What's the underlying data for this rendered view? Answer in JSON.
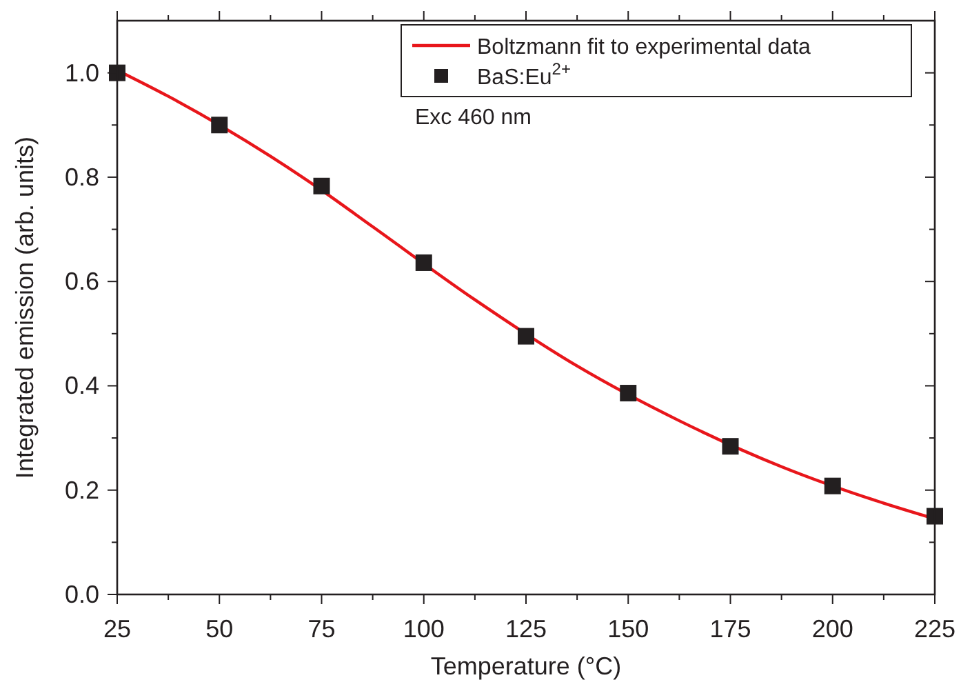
{
  "chart_data": {
    "type": "line",
    "xlabel": "Temperature (°C)",
    "ylabel": "Integrated emission (arb. units)",
    "xlim": [
      25,
      225
    ],
    "ylim": [
      0,
      1.1
    ],
    "xticks": [
      25,
      {
        "value": 37.5,
        "label": null
      },
      50,
      {
        "value": 62.5,
        "label": null
      },
      75,
      {
        "value": 87.5,
        "label": null
      },
      100,
      {
        "value": 112.5,
        "label": null
      },
      125,
      {
        "value": 137.5,
        "label": null
      },
      150,
      {
        "value": 162.5,
        "label": null
      },
      175,
      {
        "value": 187.5,
        "label": null
      },
      200,
      {
        "value": 212.5,
        "label": null
      },
      225
    ],
    "yticks": [
      {
        "value": 0,
        "label": "0.0"
      },
      {
        "value": 0.1,
        "label": null
      },
      0.2,
      {
        "value": 0.3,
        "label": null
      },
      0.4,
      {
        "value": 0.5,
        "label": null
      },
      0.6,
      {
        "value": 0.7,
        "label": null
      },
      0.8,
      {
        "value": 0.9,
        "label": null
      },
      {
        "value": 1,
        "label": "1.0"
      }
    ],
    "legend": "top right",
    "grid": false,
    "annotations": [
      "Exc 460 nm"
    ],
    "series": [
      {
        "name": "Boltzmann fit to experimental data",
        "color": "#e8161b",
        "line_style": "solid",
        "marker": "none",
        "x": [
          25,
          37.5,
          62.5,
          75,
          87.5,
          112.5,
          137.5,
          162.5,
          187.5,
          212.5,
          225
        ],
        "values": [
          1.005,
          0.955,
          0.84,
          0.775,
          0.705,
          0.565,
          0.438,
          0.333,
          0.245,
          0.175,
          0.145
        ]
      },
      {
        "name": "BaS:Eu$^{2+}$",
        "type": "scatter",
        "color": "#231f20",
        "marker": "square",
        "x": [
          25,
          50,
          75,
          100,
          125,
          150,
          175,
          200,
          225
        ],
        "values": [
          1.0,
          0.9,
          0.783,
          0.636,
          0.495,
          0.386,
          0.284,
          0.208,
          0.15
        ]
      }
    ]
  }
}
